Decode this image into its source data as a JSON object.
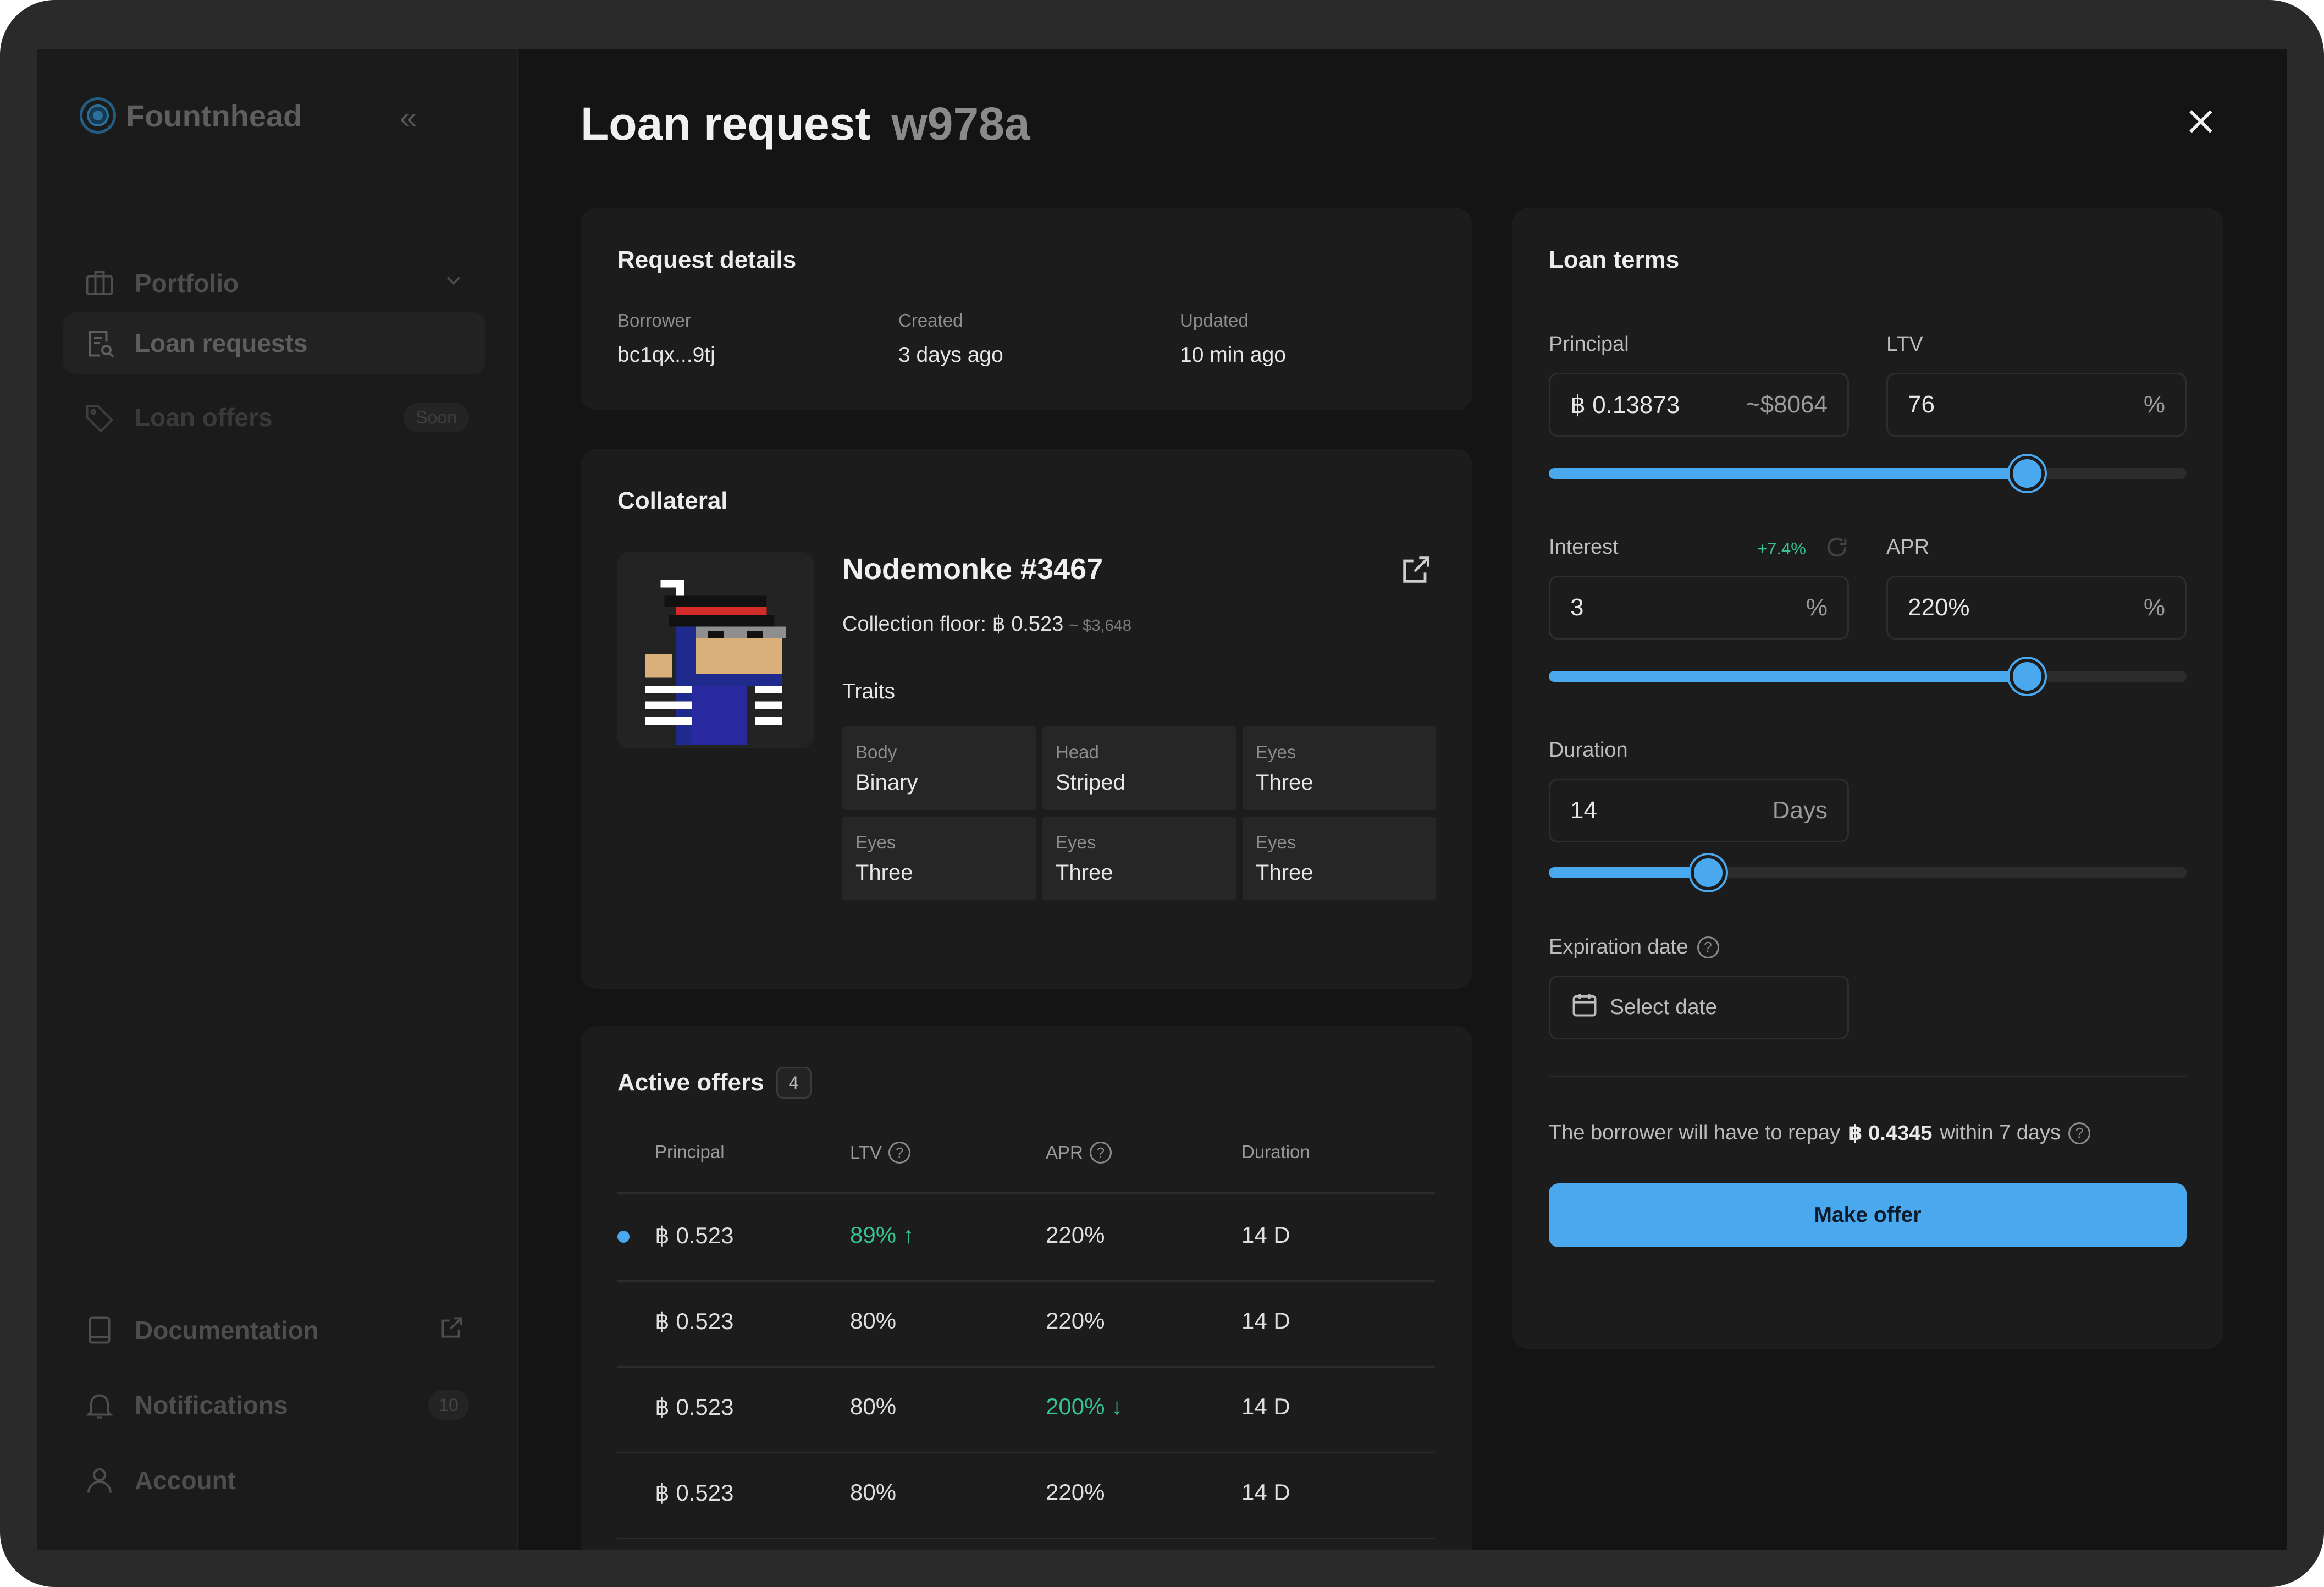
{
  "app": {
    "name": "Fountnhead"
  },
  "sidebar": {
    "items": [
      {
        "label": "Portfolio",
        "icon": "briefcase-icon"
      },
      {
        "label": "Loan requests",
        "icon": "document-search-icon"
      },
      {
        "label": "Loan offers",
        "icon": "tag-icon",
        "badge": "Soon"
      }
    ],
    "bottom": [
      {
        "label": "Documentation",
        "icon": "book-icon"
      },
      {
        "label": "Notifications",
        "icon": "bell-icon",
        "count": "10"
      },
      {
        "label": "Account",
        "icon": "user-icon"
      }
    ]
  },
  "header": {
    "title": "Loan request",
    "id": "w978a"
  },
  "request_details": {
    "title": "Request details",
    "fields": [
      {
        "label": "Borrower",
        "value": "bc1qx...9tj"
      },
      {
        "label": "Created",
        "value": "3 days ago"
      },
      {
        "label": "Updated",
        "value": "10 min ago"
      }
    ]
  },
  "collateral": {
    "title": "Collateral",
    "name": "Nodemonke #3467",
    "floor_label": "Collection floor: ฿ 0.523",
    "floor_usd": "~ $3,648",
    "traits_label": "Traits",
    "traits": [
      {
        "type": "Body",
        "value": "Binary"
      },
      {
        "type": "Head",
        "value": "Striped"
      },
      {
        "type": "Eyes",
        "value": "Three"
      },
      {
        "type": "Eyes",
        "value": "Three"
      },
      {
        "type": "Eyes",
        "value": "Three"
      },
      {
        "type": "Eyes",
        "value": "Three"
      }
    ]
  },
  "offers": {
    "title": "Active offers",
    "count": "4",
    "columns": [
      "Principal",
      "LTV",
      "APR",
      "Duration"
    ],
    "rows": [
      {
        "principal": "฿ 0.523",
        "ltv": "89% ↑",
        "apr": "220%",
        "duration": "14 D",
        "ltv_highlight": true,
        "apr_highlight": false,
        "new": true
      },
      {
        "principal": "฿ 0.523",
        "ltv": "80%",
        "apr": "220%",
        "duration": "14 D",
        "ltv_highlight": false,
        "apr_highlight": false,
        "new": false
      },
      {
        "principal": "฿ 0.523",
        "ltv": "80%",
        "apr": "200% ↓",
        "duration": "14 D",
        "ltv_highlight": false,
        "apr_highlight": true,
        "new": false
      },
      {
        "principal": "฿ 0.523",
        "ltv": "80%",
        "apr": "220%",
        "duration": "14 D",
        "ltv_highlight": false,
        "apr_highlight": false,
        "new": false
      }
    ]
  },
  "loan_terms": {
    "title": "Loan terms",
    "principal": {
      "label": "Principal",
      "value": "฿  0.13873",
      "usd": "~$8064"
    },
    "ltv": {
      "label": "LTV",
      "value": "76",
      "unit": "%"
    },
    "interest": {
      "label": "Interest",
      "change": "+7.4%",
      "value": "3",
      "unit": "%"
    },
    "apr": {
      "label": "APR",
      "value": "220%",
      "unit": "%"
    },
    "duration": {
      "label": "Duration",
      "value": "14",
      "unit": "Days"
    },
    "sliders": {
      "ltv": 0.75,
      "interest": 0.75,
      "duration": 0.25
    },
    "expiration": {
      "label": "Expiration date",
      "placeholder": "Select date"
    },
    "summary": {
      "prefix": "The borrower will have to repay",
      "amount": "฿ 0.4345",
      "suffix": "within 7 days"
    },
    "button": "Make offer"
  },
  "colors": {
    "accent": "#4aa8ef",
    "positive": "#35c48f",
    "background": "#141414"
  }
}
